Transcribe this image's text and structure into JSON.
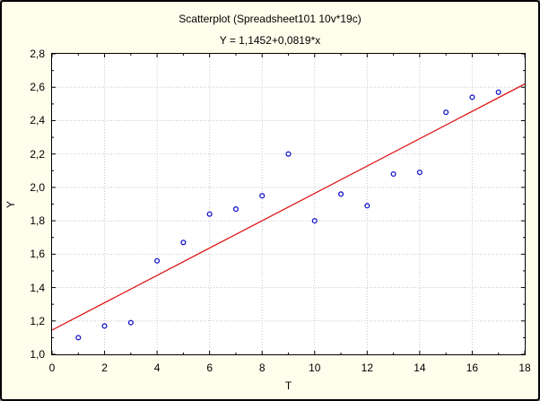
{
  "figure": {
    "title": "Scatterplot (Spreadsheet101 10v*19c)",
    "equation": "Y = 1,1452+0,0819*x"
  },
  "chart_data": {
    "type": "scatter",
    "title": "Scatterplot (Spreadsheet101 10v*19c)",
    "subtitle": "Y = 1,1452+0,0819*x",
    "xlabel": "T",
    "ylabel": "Y",
    "xlim": [
      0,
      18
    ],
    "ylim": [
      1.0,
      2.8
    ],
    "x_major_step": 2,
    "x_minor_step": 1,
    "y_major_step": 0.2,
    "y_minor_step": 0.1,
    "grid": true,
    "decimal_separator": ",",
    "x_tick_labels": [
      "0",
      "2",
      "4",
      "6",
      "8",
      "10",
      "12",
      "14",
      "16",
      "18"
    ],
    "y_tick_labels": [
      "1,0",
      "1,2",
      "1,4",
      "1,6",
      "1,8",
      "2,0",
      "2,2",
      "2,4",
      "2,6",
      "2,8"
    ],
    "points": {
      "x": [
        1,
        2,
        3,
        4,
        5,
        6,
        7,
        8,
        9,
        10,
        11,
        12,
        13,
        14,
        15,
        16,
        17
      ],
      "y": [
        1.1,
        1.17,
        1.19,
        1.56,
        1.67,
        1.84,
        1.87,
        1.95,
        2.2,
        1.8,
        1.96,
        1.89,
        2.08,
        2.09,
        2.45,
        2.54,
        2.57
      ]
    },
    "regression": {
      "intercept": 1.1452,
      "slope": 0.0819,
      "equation_text": "Y = 1,1452+0,0819*x"
    },
    "colors": {
      "figure_background": "#FFFDEB",
      "plot_background": "#FFFFFF",
      "frame": "#000000",
      "grid": "#C8C8C8",
      "point": "#1616C8",
      "regression_line": "#DC1414",
      "text": "#000000"
    }
  }
}
